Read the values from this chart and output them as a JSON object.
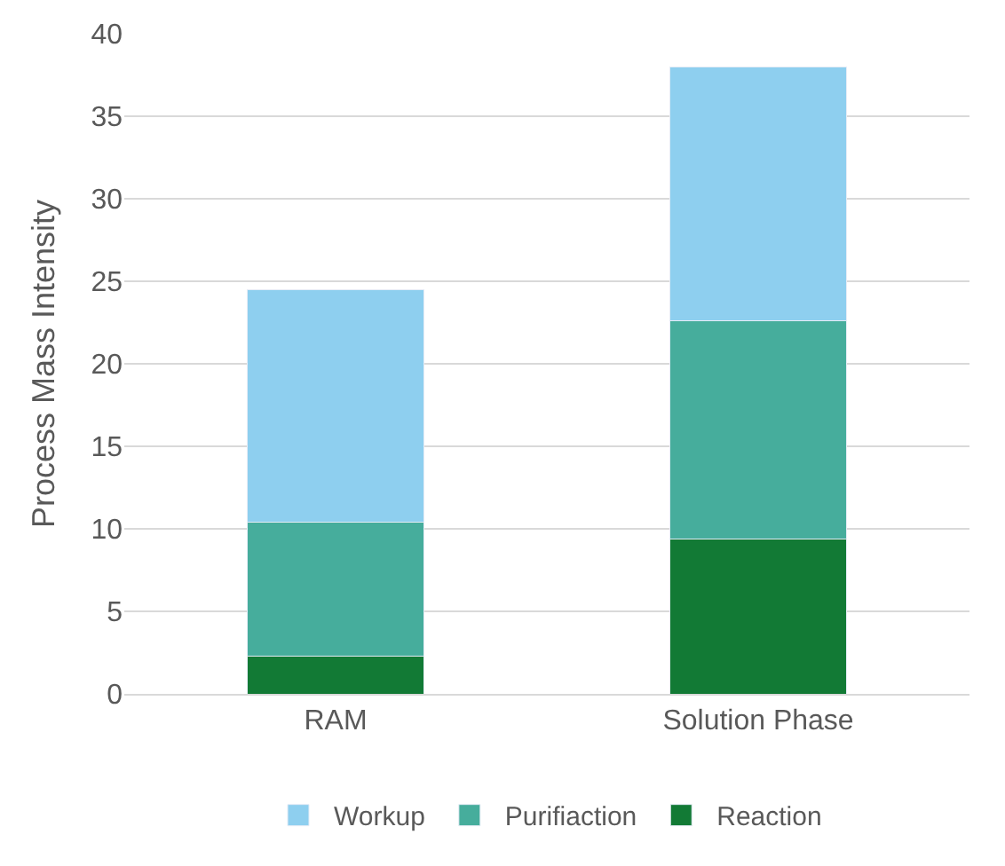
{
  "chart_data": {
    "type": "bar",
    "stacked": true,
    "ylabel": "Process Mass Intensity",
    "categories": [
      "RAM",
      "Solution Phase"
    ],
    "series": [
      {
        "name": "Reaction",
        "color": "#127a35",
        "values": [
          2.3,
          9.4
        ]
      },
      {
        "name": "Purifiaction",
        "color": "#46ad9c",
        "values": [
          8.1,
          13.2
        ]
      },
      {
        "name": "Workup",
        "color": "#8ecfef",
        "values": [
          14.1,
          15.4
        ]
      }
    ],
    "ylim": [
      0,
      40
    ],
    "yticks": [
      0,
      5,
      10,
      15,
      20,
      25,
      30,
      35,
      40
    ],
    "grid": "y",
    "legend": "bottom"
  }
}
